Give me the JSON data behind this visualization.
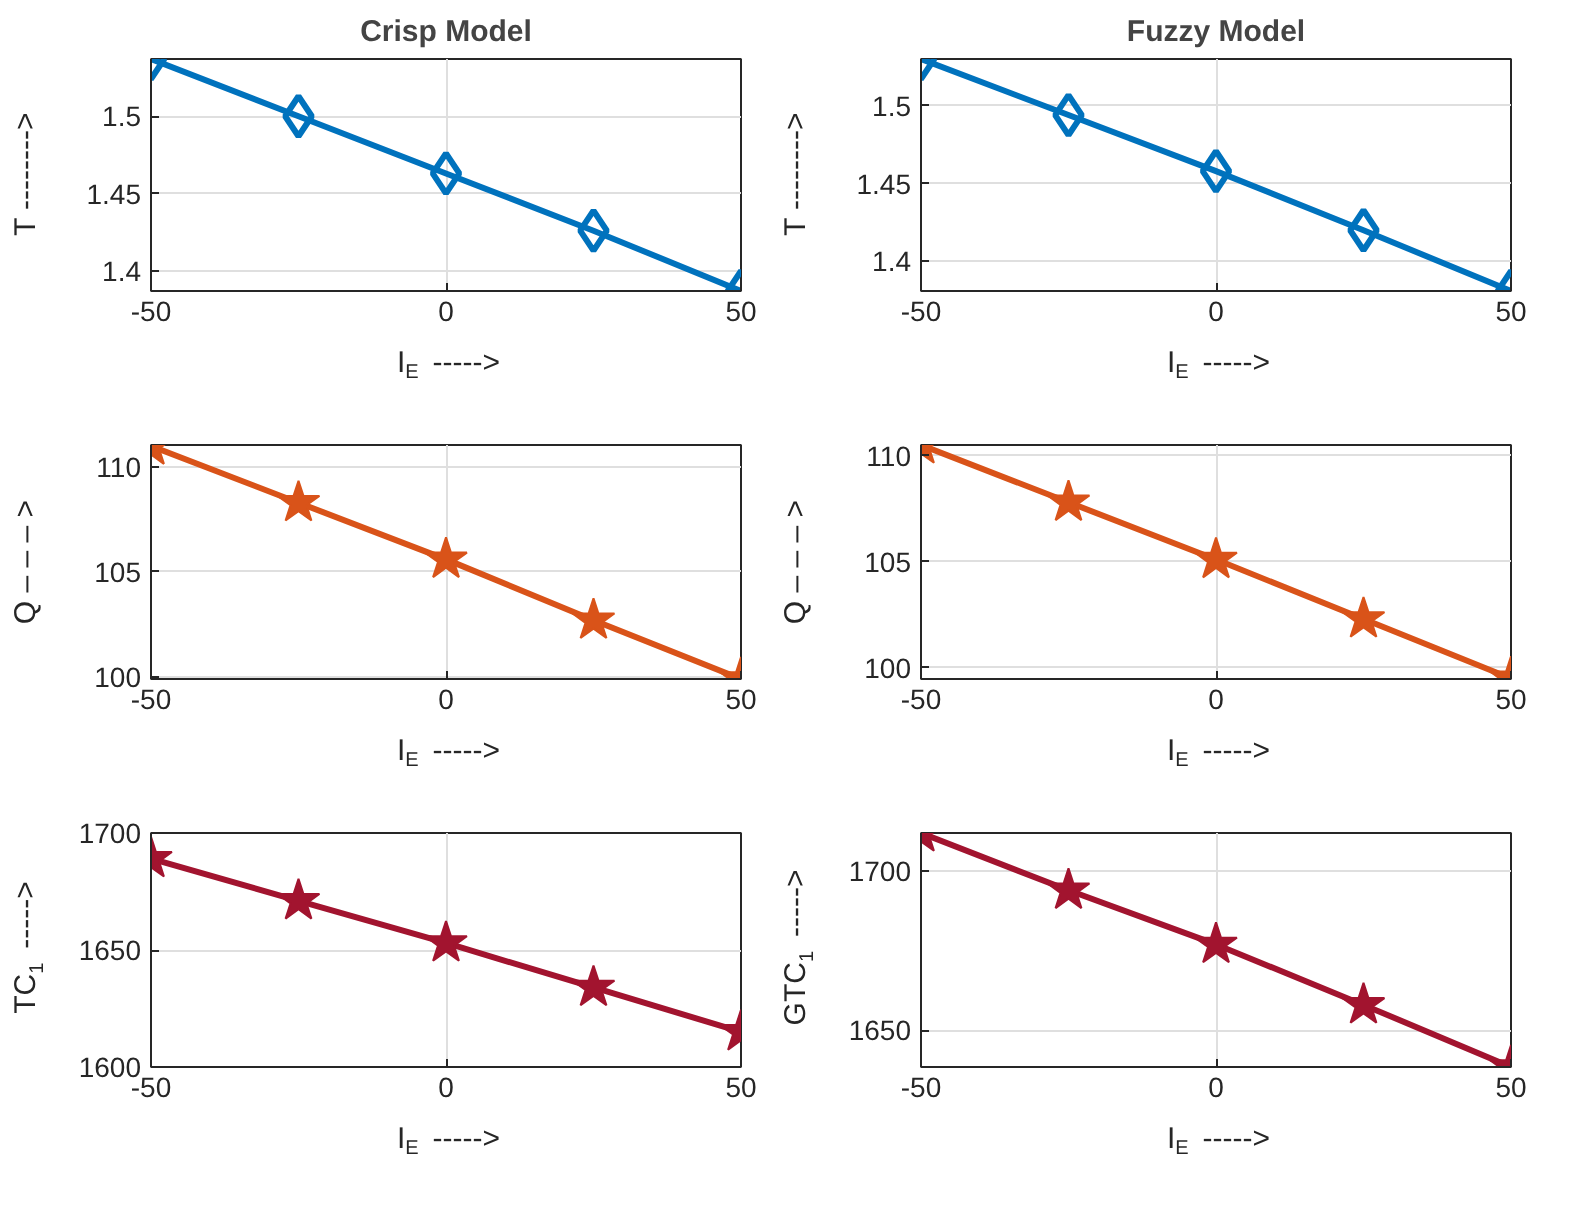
{
  "chart_data": [
    {
      "type": "line",
      "title": "Crisp Model",
      "xlabel": "I$_{E}$ ----->",
      "ylabel": "T -------->",
      "x": [
        -50,
        -25,
        0,
        25,
        50
      ],
      "marker": "diamond",
      "grid": true,
      "xlim": [
        -50,
        50
      ],
      "xticks": [
        -50,
        0,
        50
      ],
      "ylim": [
        1.387,
        1.537
      ],
      "yticks": [
        1.4,
        1.45,
        1.5
      ],
      "series": [
        {
          "color": "#0072bd",
          "values": [
            1.537,
            1.5,
            1.463,
            1.426,
            1.387
          ]
        }
      ]
    },
    {
      "type": "line",
      "title": "Fuzzy Model",
      "xlabel": "I$_{E}$ ----->",
      "ylabel": "T -------->",
      "x": [
        -50,
        -25,
        0,
        25,
        50
      ],
      "marker": "diamond",
      "grid": true,
      "xlim": [
        -50,
        50
      ],
      "xticks": [
        -50,
        0,
        50
      ],
      "ylim": [
        1.381,
        1.53
      ],
      "yticks": [
        1.4,
        1.45,
        1.5
      ],
      "series": [
        {
          "color": "#0072bd",
          "values": [
            1.53,
            1.494,
            1.458,
            1.42,
            1.381
          ]
        }
      ]
    },
    {
      "type": "line",
      "xlabel": "I$_{E}$ ----->",
      "ylabel": "Q – – – >",
      "x": [
        -50,
        -25,
        0,
        25,
        50
      ],
      "marker": "star",
      "grid": true,
      "xlim": [
        -50,
        50
      ],
      "xticks": [
        -50,
        0,
        50
      ],
      "ylim": [
        99.9,
        111.05
      ],
      "yticks": [
        100,
        105,
        110
      ],
      "series": [
        {
          "color": "#d95319",
          "values": [
            111.0,
            108.3,
            105.6,
            102.7,
            99.9
          ]
        }
      ]
    },
    {
      "type": "line",
      "xlabel": "I$_{E}$ ----->",
      "ylabel": "Q – – – >",
      "x": [
        -50,
        -25,
        0,
        25,
        50
      ],
      "marker": "star",
      "grid": true,
      "xlim": [
        -50,
        50
      ],
      "xticks": [
        -50,
        0,
        50
      ],
      "ylim": [
        99.47,
        110.5
      ],
      "yticks": [
        100,
        105,
        110
      ],
      "series": [
        {
          "color": "#d95319",
          "values": [
            110.5,
            107.8,
            105.1,
            102.3,
            99.5
          ]
        }
      ]
    },
    {
      "type": "line",
      "xlabel": "I$_{E}$ ----->",
      "ylabel": "TC$_{1}$ ----->",
      "x": [
        -50,
        -25,
        0,
        25,
        50
      ],
      "marker": "star",
      "grid": true,
      "xlim": [
        -50,
        50
      ],
      "xticks": [
        -50,
        0,
        50
      ],
      "ylim": [
        1600,
        1700
      ],
      "yticks": [
        1600,
        1650,
        1700
      ],
      "series": [
        {
          "color": "#a2142f",
          "values": [
            1689,
            1671,
            1653,
            1634,
            1615
          ]
        }
      ]
    },
    {
      "type": "line",
      "xlabel": "I$_{E}$ ----->",
      "ylabel": "GTC$_{1}$ ----->",
      "x": [
        -50,
        -25,
        0,
        25,
        50
      ],
      "marker": "star",
      "grid": true,
      "xlim": [
        -50,
        50
      ],
      "xticks": [
        -50,
        0,
        50
      ],
      "ylim": [
        1638.5,
        1712
      ],
      "yticks": [
        1650,
        1700
      ],
      "series": [
        {
          "color": "#a2142f",
          "values": [
            1712,
            1694,
            1677,
            1658,
            1638.5
          ]
        }
      ]
    }
  ]
}
